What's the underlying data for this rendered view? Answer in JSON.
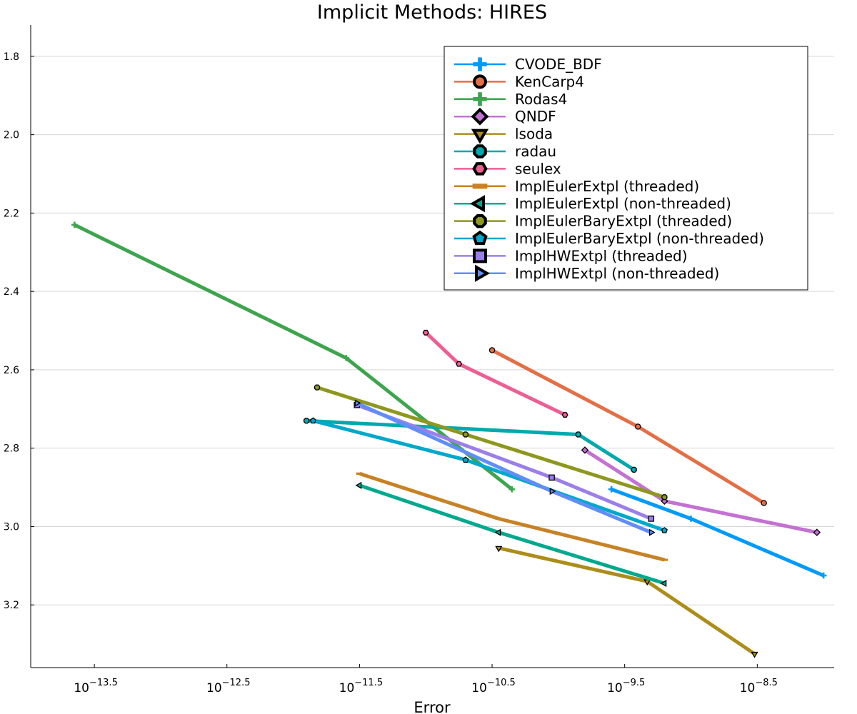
{
  "chart_data": {
    "type": "line",
    "title": "Implicit Methods: HIRES",
    "xlabel": "Error",
    "ylabel": "",
    "xscale": "log10",
    "yinverted": true,
    "xlim_log10": [
      -13.98,
      -7.92
    ],
    "ylim": [
      1.72,
      3.36
    ],
    "xticks": [
      {
        "exp": -13.5,
        "base": "10",
        "sup": "−13.5"
      },
      {
        "exp": -12.5,
        "base": "10",
        "sup": "−12.5"
      },
      {
        "exp": -11.5,
        "base": "10",
        "sup": "−11.5"
      },
      {
        "exp": -10.5,
        "base": "10",
        "sup": "−10.5"
      },
      {
        "exp": -9.5,
        "base": "10",
        "sup": "−9.5"
      },
      {
        "exp": -8.5,
        "base": "10",
        "sup": "−8.5"
      }
    ],
    "yticks": [
      {
        "v": 1.8,
        "label": "1.8"
      },
      {
        "v": 2.0,
        "label": "2.0"
      },
      {
        "v": 2.2,
        "label": "2.2"
      },
      {
        "v": 2.4,
        "label": "2.4"
      },
      {
        "v": 2.6,
        "label": "2.6"
      },
      {
        "v": 2.8,
        "label": "2.8"
      },
      {
        "v": 3.0,
        "label": "3.0"
      },
      {
        "v": 3.2,
        "label": "3.2"
      }
    ],
    "grid": true,
    "legend_position": "top-right",
    "series": [
      {
        "name": "CVODE_BDF",
        "color": "#009AFA",
        "marker": "cross",
        "points": [
          [
            -9.6,
            2.905
          ],
          [
            -9.0,
            2.98
          ],
          [
            -8.0,
            3.125
          ]
        ]
      },
      {
        "name": "KenCarp4",
        "color": "#E36F47",
        "marker": "circle",
        "points": [
          [
            -10.5,
            2.55
          ],
          [
            -9.4,
            2.745
          ],
          [
            -8.45,
            2.94
          ]
        ]
      },
      {
        "name": "Rodas4",
        "color": "#3EA44E",
        "marker": "cross",
        "points": [
          [
            -13.65,
            2.23
          ],
          [
            -11.6,
            2.57
          ],
          [
            -10.35,
            2.905
          ]
        ]
      },
      {
        "name": "QNDF",
        "color": "#C371D2",
        "marker": "diamond",
        "points": [
          [
            -9.8,
            2.805
          ],
          [
            -9.2,
            2.935
          ],
          [
            -8.05,
            3.015
          ]
        ]
      },
      {
        "name": "lsoda",
        "color": "#AC8D19",
        "marker": "dtriangle",
        "points": [
          [
            -10.45,
            3.055
          ],
          [
            -9.33,
            3.14
          ],
          [
            -8.52,
            3.325
          ]
        ]
      },
      {
        "name": "radau",
        "color": "#00A9AD",
        "marker": "octagon",
        "points": [
          [
            -11.9,
            2.73
          ],
          [
            -9.85,
            2.765
          ],
          [
            -9.43,
            2.855
          ]
        ]
      },
      {
        "name": "seulex",
        "color": "#ED5E93",
        "marker": "hexagon",
        "points": [
          [
            -11.0,
            2.505
          ],
          [
            -10.75,
            2.585
          ],
          [
            -9.95,
            2.715
          ]
        ]
      },
      {
        "name": "ImplEulerExtpl (threaded)",
        "color": "#C68225",
        "marker": "hline",
        "points": [
          [
            -11.5,
            2.865
          ],
          [
            -10.45,
            2.98
          ],
          [
            -9.2,
            3.085
          ]
        ]
      },
      {
        "name": "ImplEulerExtpl (non-threaded)",
        "color": "#00A98D",
        "marker": "ltriangle",
        "points": [
          [
            -11.5,
            2.895
          ],
          [
            -10.45,
            3.015
          ],
          [
            -9.2,
            3.145
          ]
        ]
      },
      {
        "name": "ImplEulerBaryExtpl (threaded)",
        "color": "#8E971E",
        "marker": "octagon",
        "points": [
          [
            -11.82,
            2.645
          ],
          [
            -10.7,
            2.765
          ],
          [
            -9.2,
            2.925
          ]
        ]
      },
      {
        "name": "ImplEulerBaryExtpl (non-threaded)",
        "color": "#00A8CB",
        "marker": "pentagon",
        "points": [
          [
            -11.85,
            2.73
          ],
          [
            -10.7,
            2.83
          ],
          [
            -9.2,
            3.01
          ]
        ]
      },
      {
        "name": "ImplHWExtpl (threaded)",
        "color": "#9B7FE9",
        "marker": "rect",
        "points": [
          [
            -11.52,
            2.69
          ],
          [
            -10.05,
            2.875
          ],
          [
            -9.3,
            2.98
          ]
        ]
      },
      {
        "name": "ImplHWExtpl (non-threaded)",
        "color": "#618DF6",
        "marker": "rtriangle",
        "points": [
          [
            -11.52,
            2.685
          ],
          [
            -10.05,
            2.91
          ],
          [
            -9.3,
            3.015
          ]
        ]
      }
    ]
  }
}
